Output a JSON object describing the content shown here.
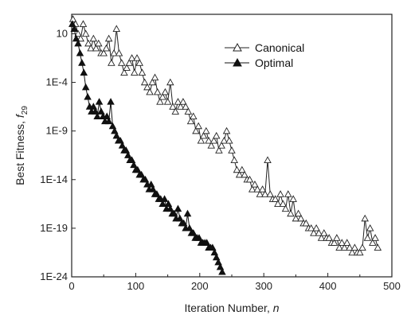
{
  "chart_data": {
    "type": "scatter",
    "xlabel": "Iteration Number, ",
    "xlabel_var": "n",
    "ylabel": "Best Fitness, ",
    "ylabel_var": "f",
    "ylabel_sub": "29",
    "xlim": [
      0,
      500
    ],
    "ylim_log10": [
      -24,
      3
    ],
    "y_scale": "log",
    "x_ticks": [
      0,
      100,
      200,
      300,
      400,
      500
    ],
    "x_tick_labels": [
      "0",
      "100",
      "200",
      "300",
      "400",
      "500"
    ],
    "y_ticks_log10": [
      1,
      -4,
      -9,
      -14,
      -19,
      -24
    ],
    "y_tick_labels": [
      "10",
      "1E-4",
      "1E-9",
      "1E-14",
      "1E-19",
      "1E-24"
    ],
    "grid": false,
    "legend_position": "top-right",
    "series": [
      {
        "name": "Canonical",
        "marker": "open-triangle",
        "color": "#222222",
        "x": [
          2,
          6,
          10,
          14,
          18,
          22,
          26,
          30,
          34,
          38,
          42,
          46,
          50,
          54,
          58,
          62,
          66,
          70,
          74,
          78,
          82,
          86,
          90,
          94,
          98,
          102,
          106,
          110,
          114,
          118,
          122,
          126,
          130,
          134,
          138,
          142,
          146,
          150,
          154,
          158,
          162,
          166,
          170,
          174,
          178,
          182,
          186,
          190,
          194,
          198,
          202,
          206,
          210,
          214,
          218,
          222,
          226,
          230,
          234,
          238,
          242,
          246,
          250,
          254,
          258,
          262,
          266,
          270,
          274,
          278,
          282,
          286,
          290,
          294,
          298,
          302,
          306,
          310,
          314,
          318,
          322,
          326,
          330,
          334,
          338,
          342,
          346,
          350,
          354,
          358,
          362,
          366,
          370,
          374,
          378,
          382,
          386,
          390,
          394,
          398,
          402,
          406,
          410,
          414,
          418,
          422,
          426,
          430,
          434,
          438,
          442,
          446,
          450,
          454,
          458,
          462,
          466,
          470,
          474,
          478
        ],
        "log10_y": [
          2.5,
          2.0,
          1.0,
          0.5,
          2.0,
          1.0,
          0.0,
          -0.5,
          0.5,
          -0.5,
          0.0,
          -1.0,
          -1.0,
          -0.5,
          0.5,
          -2.0,
          -1.0,
          1.5,
          -1.0,
          -2.0,
          -3.0,
          -2.5,
          -2.0,
          -1.5,
          -3.0,
          -1.5,
          -2.0,
          -3.0,
          -4.0,
          -4.5,
          -5.0,
          -4.0,
          -3.5,
          -5.0,
          -6.0,
          -5.5,
          -5.0,
          -6.0,
          -4.0,
          -6.5,
          -7.0,
          -6.0,
          -6.5,
          -6.0,
          -6.5,
          -7.0,
          -8.0,
          -7.5,
          -9.0,
          -8.5,
          -10.0,
          -9.5,
          -9.0,
          -10.0,
          -10.5,
          -10.0,
          -9.5,
          -11.0,
          -10.5,
          -10.0,
          -9.0,
          -10.0,
          -11.0,
          -12.0,
          -13.0,
          -13.5,
          -13.0,
          -13.5,
          -14.0,
          -14.0,
          -15.0,
          -14.5,
          -15.0,
          -15.5,
          -15.0,
          -15.5,
          -12.0,
          -15.5,
          -16.0,
          -16.0,
          -16.5,
          -15.5,
          -16.5,
          -17.0,
          -15.5,
          -17.5,
          -16.0,
          -18.0,
          -17.5,
          -18.0,
          -18.5,
          -18.5,
          -19.0,
          -19.0,
          -19.5,
          -19.0,
          -19.5,
          -20.0,
          -19.5,
          -20.0,
          -20.0,
          -20.5,
          -20.5,
          -20.0,
          -21.0,
          -20.5,
          -21.0,
          -20.5,
          -21.0,
          -21.5,
          -21.0,
          -21.5,
          -21.5,
          -21.0,
          -18.0,
          -20.0,
          -19.0,
          -20.5,
          -20.0,
          -21.0
        ]
      },
      {
        "name": "Optimal",
        "marker": "filled-triangle",
        "color": "#111111",
        "x": [
          1,
          4,
          7,
          10,
          13,
          16,
          19,
          22,
          25,
          28,
          31,
          34,
          37,
          40,
          43,
          46,
          49,
          52,
          55,
          58,
          61,
          64,
          67,
          70,
          73,
          76,
          79,
          82,
          85,
          88,
          91,
          94,
          97,
          100,
          103,
          106,
          109,
          112,
          115,
          118,
          121,
          124,
          127,
          130,
          133,
          136,
          139,
          142,
          145,
          148,
          151,
          154,
          157,
          160,
          163,
          166,
          169,
          172,
          175,
          178,
          181,
          184,
          187,
          190,
          193,
          196,
          199,
          202,
          205,
          208,
          211,
          214,
          217,
          220,
          223,
          226,
          229,
          232,
          235
        ],
        "log10_y": [
          2.0,
          1.5,
          0.5,
          0.0,
          -1.0,
          -2.0,
          -3.0,
          -4.5,
          -5.5,
          -6.5,
          -7.0,
          -6.5,
          -7.0,
          -7.5,
          -6.0,
          -7.0,
          -7.5,
          -8.0,
          -7.5,
          -8.0,
          -6.0,
          -8.5,
          -9.0,
          -9.5,
          -10.0,
          -10.0,
          -10.5,
          -11.0,
          -11.0,
          -11.5,
          -12.0,
          -12.0,
          -12.5,
          -13.0,
          -13.0,
          -13.5,
          -13.5,
          -14.0,
          -14.0,
          -14.5,
          -15.0,
          -14.5,
          -15.0,
          -15.5,
          -15.5,
          -16.0,
          -16.0,
          -16.5,
          -16.0,
          -17.0,
          -16.5,
          -17.0,
          -17.5,
          -17.5,
          -18.0,
          -17.0,
          -18.0,
          -18.5,
          -18.5,
          -19.0,
          -17.5,
          -19.0,
          -19.5,
          -19.5,
          -20.0,
          -20.0,
          -20.0,
          -20.5,
          -20.5,
          -20.5,
          -20.5,
          -21.0,
          -21.0,
          -21.0,
          -21.5,
          -22.0,
          -22.5,
          -23.0,
          -23.5
        ]
      }
    ]
  }
}
